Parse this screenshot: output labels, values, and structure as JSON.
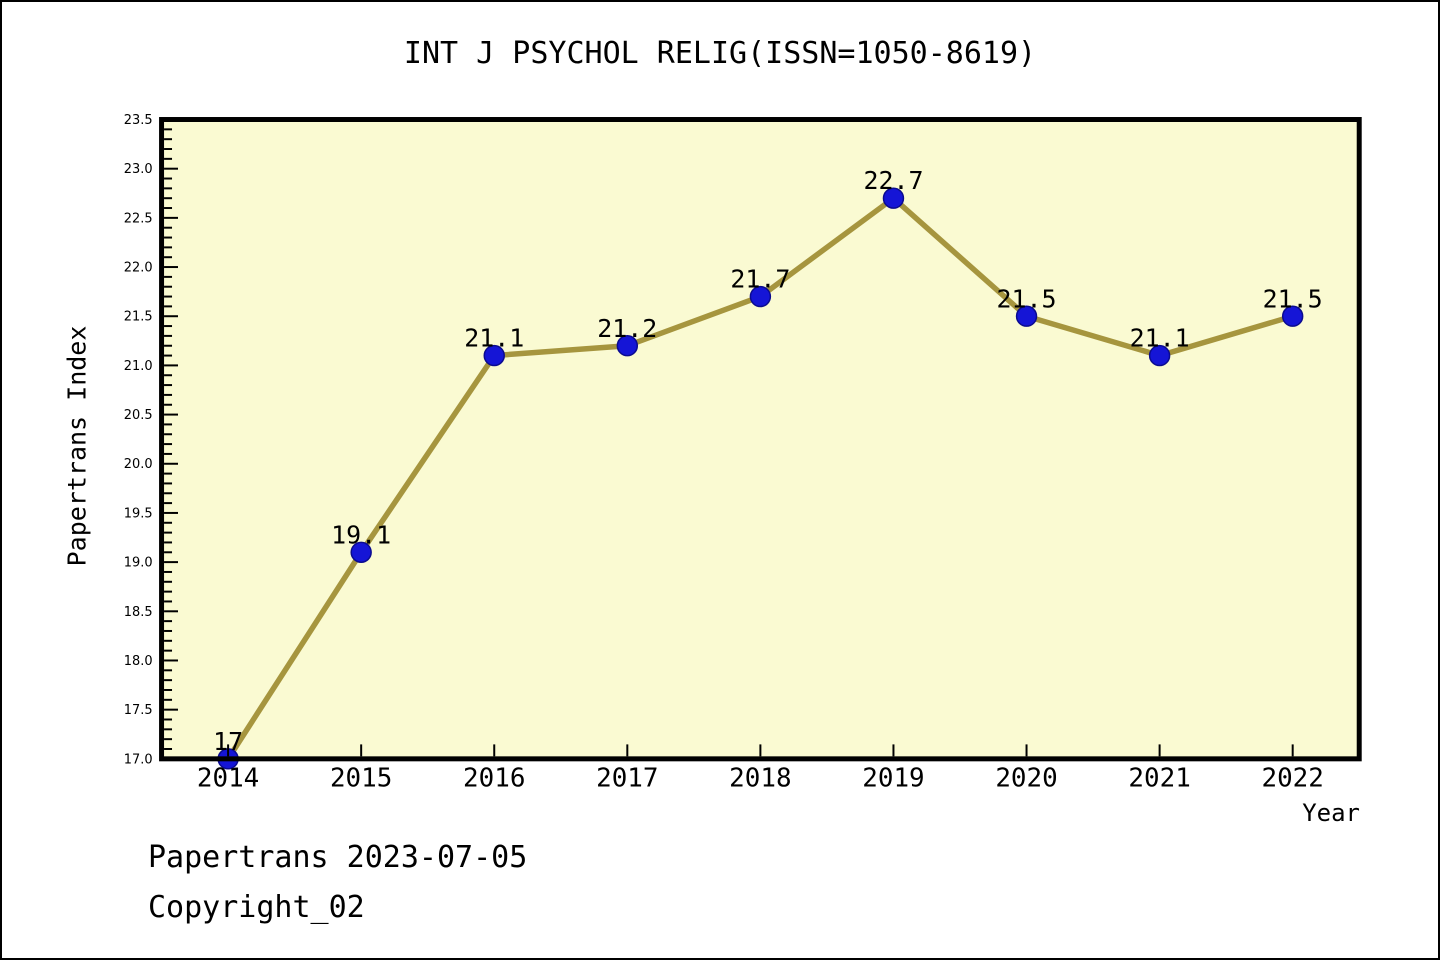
{
  "page": {
    "footer_line1": "Papertrans 2023-07-05",
    "footer_line2": "Copyright_02"
  },
  "chart_data": {
    "type": "line",
    "title": "INT J PSYCHOL RELIG(ISSN=1050-8619)",
    "xlabel": "Year",
    "ylabel": "Papertrans Index",
    "x": [
      2014,
      2015,
      2016,
      2017,
      2018,
      2019,
      2020,
      2021,
      2022
    ],
    "series": [
      {
        "name": "Papertrans Index",
        "values": [
          17,
          19.1,
          21.1,
          21.2,
          21.7,
          22.7,
          21.5,
          21.1,
          21.5
        ]
      }
    ],
    "point_labels": [
      "17",
      "19.1",
      "21.1",
      "21.2",
      "21.7",
      "22.7",
      "21.5",
      "21.1",
      "21.5"
    ],
    "xlim": [
      2013.5,
      2022.5
    ],
    "ylim": [
      17.0,
      23.5
    ],
    "y_major_step": 0.5,
    "y_minor_step": 0.1,
    "grid": false,
    "legend": "none",
    "colors": {
      "line": "#A6953E",
      "marker_fill": "#1515D6",
      "marker_edge": "#0B0B8F",
      "plot_background": "#FAFAD2",
      "frame": "#000000",
      "text": "#000000"
    }
  }
}
